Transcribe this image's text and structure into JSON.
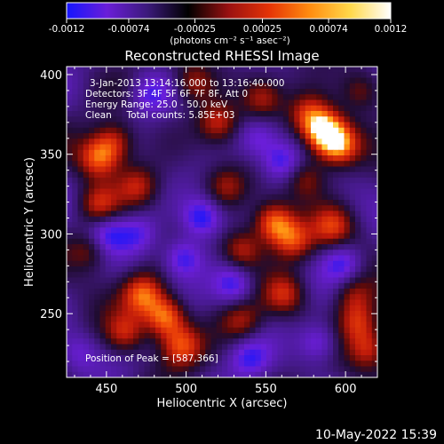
{
  "colorbar": {
    "ticks": [
      "-0.0012",
      "-0.00074",
      "-0.00025",
      "0.00025",
      "0.00074",
      "0.0012"
    ],
    "tick_values": [
      -0.0012,
      -0.00074,
      -0.00025,
      0.00025,
      0.00074,
      0.0012
    ],
    "range": [
      -0.0012,
      0.0012
    ],
    "units_label": "(photons cm⁻² s⁻¹ asec⁻²)",
    "colors": [
      "#1515ff",
      "#6a1ed8",
      "#3b1a7a",
      "#000000",
      "#9a1111",
      "#e53306",
      "#ff8c10",
      "#ffd84a",
      "#ffffff"
    ]
  },
  "chart_data": {
    "type": "heatmap",
    "title": "Reconstructed RHESSI Image",
    "xlabel": "Heliocentric X (arcsec)",
    "ylabel": "Heliocentric Y (arcsec)",
    "xlim": [
      425,
      620
    ],
    "ylim": [
      210,
      405
    ],
    "xticks": [
      "450",
      "500",
      "550",
      "600"
    ],
    "xtick_values": [
      450,
      500,
      550,
      600
    ],
    "yticks": [
      "250",
      "300",
      "350",
      "400"
    ],
    "ytick_values": [
      250,
      300,
      350,
      400
    ],
    "info_lines": [
      "3-Jan-2013 13:14:16.000 to 13:16:40.000",
      "Detectors: 3F 4F 5F 6F 7F 8F, Att 0",
      "Energy Range: 25.0 - 50.0 keV",
      "Clean     Total counts: 5.85E+03"
    ],
    "peak_label": "Position of Peak = [587,366]",
    "peak": [
      587,
      366
    ],
    "hotspots": [
      {
        "x": 587,
        "y": 364,
        "v": 1.0
      },
      {
        "x": 596,
        "y": 355,
        "v": 0.75
      },
      {
        "x": 577,
        "y": 375,
        "v": 0.55
      },
      {
        "x": 487,
        "y": 248,
        "v": 0.85
      },
      {
        "x": 473,
        "y": 262,
        "v": 0.7
      },
      {
        "x": 497,
        "y": 230,
        "v": 0.6
      },
      {
        "x": 462,
        "y": 238,
        "v": 0.5
      },
      {
        "x": 555,
        "y": 307,
        "v": 0.8
      },
      {
        "x": 567,
        "y": 296,
        "v": 0.6
      },
      {
        "x": 535,
        "y": 290,
        "v": 0.55
      },
      {
        "x": 592,
        "y": 305,
        "v": 0.5
      },
      {
        "x": 445,
        "y": 348,
        "v": 0.7
      },
      {
        "x": 455,
        "y": 358,
        "v": 0.55
      },
      {
        "x": 445,
        "y": 318,
        "v": 0.5
      },
      {
        "x": 470,
        "y": 330,
        "v": 0.45
      },
      {
        "x": 520,
        "y": 370,
        "v": 0.5
      },
      {
        "x": 505,
        "y": 395,
        "v": 0.45
      },
      {
        "x": 548,
        "y": 385,
        "v": 0.45
      },
      {
        "x": 610,
        "y": 390,
        "v": 0.4
      },
      {
        "x": 525,
        "y": 330,
        "v": 0.4
      },
      {
        "x": 562,
        "y": 262,
        "v": 0.5
      },
      {
        "x": 605,
        "y": 262,
        "v": 0.45
      },
      {
        "x": 608,
        "y": 245,
        "v": 0.55
      },
      {
        "x": 615,
        "y": 228,
        "v": 0.5
      },
      {
        "x": 535,
        "y": 245,
        "v": 0.4
      },
      {
        "x": 440,
        "y": 290,
        "v": 0.4
      },
      {
        "x": 575,
        "y": 335,
        "v": 0.4
      }
    ],
    "coldspots": [
      {
        "x": 510,
        "y": 310,
        "v": -0.6
      },
      {
        "x": 530,
        "y": 268,
        "v": -0.5
      },
      {
        "x": 498,
        "y": 285,
        "v": -0.55
      },
      {
        "x": 560,
        "y": 345,
        "v": -0.5
      },
      {
        "x": 598,
        "y": 282,
        "v": -0.45
      },
      {
        "x": 583,
        "y": 232,
        "v": -0.45
      },
      {
        "x": 540,
        "y": 222,
        "v": -0.4
      },
      {
        "x": 450,
        "y": 300,
        "v": -0.45
      },
      {
        "x": 478,
        "y": 388,
        "v": -0.4
      },
      {
        "x": 470,
        "y": 300,
        "v": -0.35
      },
      {
        "x": 432,
        "y": 225,
        "v": -0.3
      },
      {
        "x": 545,
        "y": 360,
        "v": -0.35
      }
    ]
  },
  "timestamp": "10-May-2022 15:39"
}
